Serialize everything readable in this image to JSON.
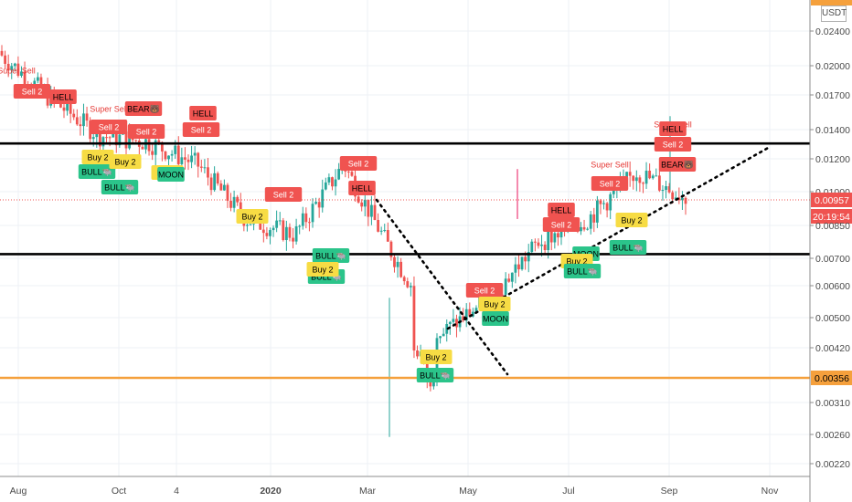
{
  "chart_data": {
    "type": "candlestick",
    "currency": "USDT",
    "y_axis_scale": "log",
    "y_axis_side": "right",
    "ylim": [
      0.00205,
      0.0285
    ],
    "y_ticks": [
      "0.02400",
      "0.02000",
      "0.01700",
      "0.01400",
      "0.01200",
      "0.01000",
      "0.00957",
      "0.00850",
      "0.00700",
      "0.00600",
      "0.00500",
      "0.00420",
      "0.00356",
      "0.00310",
      "0.00260",
      "0.00220"
    ],
    "x_ticks": [
      "Aug",
      "Oct",
      "4",
      "2020",
      "Mar",
      "May",
      "Jul",
      "Sep",
      "Nov"
    ],
    "current_price": "0.00957",
    "countdown": "20:19:54",
    "marked_level": "0.00356",
    "colors": {
      "up": "#26a69a",
      "down": "#ef5350",
      "sell_label": "#f05350",
      "buy_label": "#f7dc44",
      "bull_label": "#2bc48a",
      "orange_line": "#f5a03c",
      "pink_candle": "#f06292",
      "level_line": "#000000"
    },
    "horizontal_levels": [
      0.0129,
      0.007
    ],
    "trend_lines": [
      {
        "style": "dotted",
        "from": [
          "Feb 2020",
          0.0097
        ],
        "to": [
          "Apr 2020",
          0.0037
        ]
      },
      {
        "style": "dotted",
        "from": [
          "Apr 2020",
          0.0047
        ],
        "to": [
          "Oct 2020",
          0.0127
        ]
      }
    ],
    "price_series": {
      "x": [
        "Jul",
        "Aug",
        "Sep",
        "Oct",
        "Nov",
        "Dec",
        "Jan",
        "Feb",
        "Mar",
        "Apr",
        "May",
        "Jun",
        "Jul",
        "Aug",
        "Sep"
      ],
      "close": [
        0.021,
        0.0165,
        0.0135,
        0.013,
        0.0115,
        0.0085,
        0.0078,
        0.0115,
        0.007,
        0.0045,
        0.0055,
        0.0075,
        0.0085,
        0.011,
        0.00957
      ]
    },
    "signals": [
      {
        "type": "super_sell",
        "text": "Super Sell"
      },
      {
        "type": "sell",
        "text": "Sell 2"
      },
      {
        "type": "hell",
        "text": "HELL"
      },
      {
        "type": "super_sell",
        "text": "Super Sell"
      },
      {
        "type": "sell",
        "text": "Sell 2"
      },
      {
        "type": "bear",
        "text": "BEAR🐻"
      },
      {
        "type": "buy",
        "text": "Buy 2"
      },
      {
        "type": "bull",
        "text": "BULL🐃"
      },
      {
        "type": "sell",
        "text": "Sell 2"
      },
      {
        "type": "buy",
        "text": "Buy 2"
      },
      {
        "type": "bull",
        "text": "BULL🐃"
      },
      {
        "type": "hell",
        "text": "HELL"
      },
      {
        "type": "sell",
        "text": "Sell 2"
      },
      {
        "type": "buy",
        "text": "Buy 2"
      },
      {
        "type": "moon",
        "text": "MOON"
      },
      {
        "type": "sell",
        "text": "Sell 2"
      },
      {
        "type": "buy",
        "text": "Buy 2"
      },
      {
        "type": "bull",
        "text": "BULL🐃"
      },
      {
        "type": "sell",
        "text": "Sell 2"
      },
      {
        "type": "hell",
        "text": "HELL"
      },
      {
        "type": "bull",
        "text": "BULL🐃"
      },
      {
        "type": "buy",
        "text": "Buy 2"
      },
      {
        "type": "buy",
        "text": "Buy 2"
      },
      {
        "type": "bull",
        "text": "BULL🐃"
      },
      {
        "type": "sell",
        "text": "Sell 2"
      },
      {
        "type": "buy",
        "text": "Buy 2"
      },
      {
        "type": "moon",
        "text": "MOON"
      },
      {
        "type": "hell",
        "text": "HELL"
      },
      {
        "type": "sell",
        "text": "Sell 2"
      },
      {
        "type": "moon",
        "text": "MOON"
      },
      {
        "type": "buy",
        "text": "Buy 2"
      },
      {
        "type": "bull",
        "text": "BULL🐃"
      },
      {
        "type": "super_sell",
        "text": "Super Sell"
      },
      {
        "type": "sell",
        "text": "Sell 2"
      },
      {
        "type": "buy",
        "text": "Buy 2"
      },
      {
        "type": "bull",
        "text": "BULL🐃"
      },
      {
        "type": "super_sell",
        "text": "Super Sell"
      },
      {
        "type": "hell",
        "text": "HELL"
      },
      {
        "type": "sell",
        "text": "Sell 2"
      },
      {
        "type": "bear",
        "text": "BEAR🐻"
      }
    ]
  }
}
